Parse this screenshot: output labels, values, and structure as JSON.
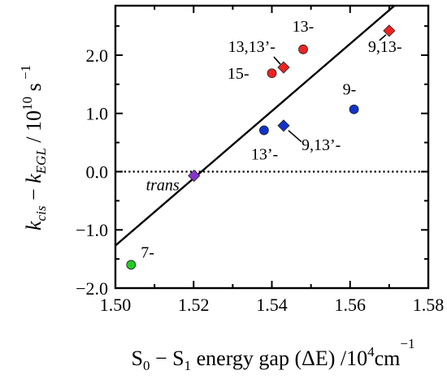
{
  "chart_data": {
    "type": "scatter",
    "xlim": [
      1.5,
      1.58
    ],
    "ylim": [
      -2.0,
      2.85
    ],
    "x_ticks": [
      {
        "value": 1.5,
        "label": "1.50"
      },
      {
        "value": 1.52,
        "label": "1.52"
      },
      {
        "value": 1.54,
        "label": "1.54"
      },
      {
        "value": 1.56,
        "label": "1.56"
      },
      {
        "value": 1.58,
        "label": "1.58"
      }
    ],
    "y_ticks": [
      {
        "value": -2.0,
        "label": "−2.0"
      },
      {
        "value": -1.0,
        "label": "−1.0"
      },
      {
        "value": 0.0,
        "label": "0.0"
      },
      {
        "value": 1.0,
        "label": "1.0"
      },
      {
        "value": 2.0,
        "label": "2.0"
      }
    ],
    "xlabel": {
      "main": "S",
      "sub0": "0",
      "mid": " − S",
      "sub1": "1",
      "rest": " energy gap (ΔE) /10",
      "sup": "4",
      "unit": "cm",
      "unit_sup": "−1"
    },
    "ylabel": {
      "k1": "k",
      "sub1": "cis",
      "minus": " − ",
      "k2": "k",
      "sub2": "EGL",
      "rest": " / 10",
      "sup1": "10",
      "unit": " s",
      "sup2": " −1"
    },
    "points": [
      {
        "label": "7-",
        "x": 1.504,
        "y": -1.6,
        "marker": "circle",
        "color": "#22cc22"
      },
      {
        "label": "trans",
        "x": 1.5201,
        "y": -0.07,
        "marker": "diamond",
        "color": "#8833cc"
      },
      {
        "label": "13’-",
        "x": 1.538,
        "y": 0.71,
        "marker": "circle",
        "color": "#1133cc"
      },
      {
        "label": "9,13’-",
        "x": 1.543,
        "y": 0.79,
        "marker": "diamond",
        "color": "#1133cc"
      },
      {
        "label": "9-",
        "x": 1.561,
        "y": 1.07,
        "marker": "circle",
        "color": "#1133cc"
      },
      {
        "label": "15-",
        "x": 1.54,
        "y": 1.69,
        "marker": "circle",
        "color": "#ee2222"
      },
      {
        "label": "13,13’-",
        "x": 1.543,
        "y": 1.79,
        "marker": "diamond",
        "color": "#ee2222"
      },
      {
        "label": "13-",
        "x": 1.548,
        "y": 2.1,
        "marker": "circle",
        "color": "#ee2222"
      },
      {
        "label": "9,13-",
        "x": 1.57,
        "y": 2.42,
        "marker": "diamond",
        "color": "#ee2222"
      }
    ],
    "fit_line": {
      "x": [
        1.5,
        1.58
      ],
      "y": [
        -1.27,
        3.35
      ]
    },
    "zero_line": {
      "y": 0.0,
      "style": "dotted"
    },
    "grid": false,
    "legend": "none"
  }
}
